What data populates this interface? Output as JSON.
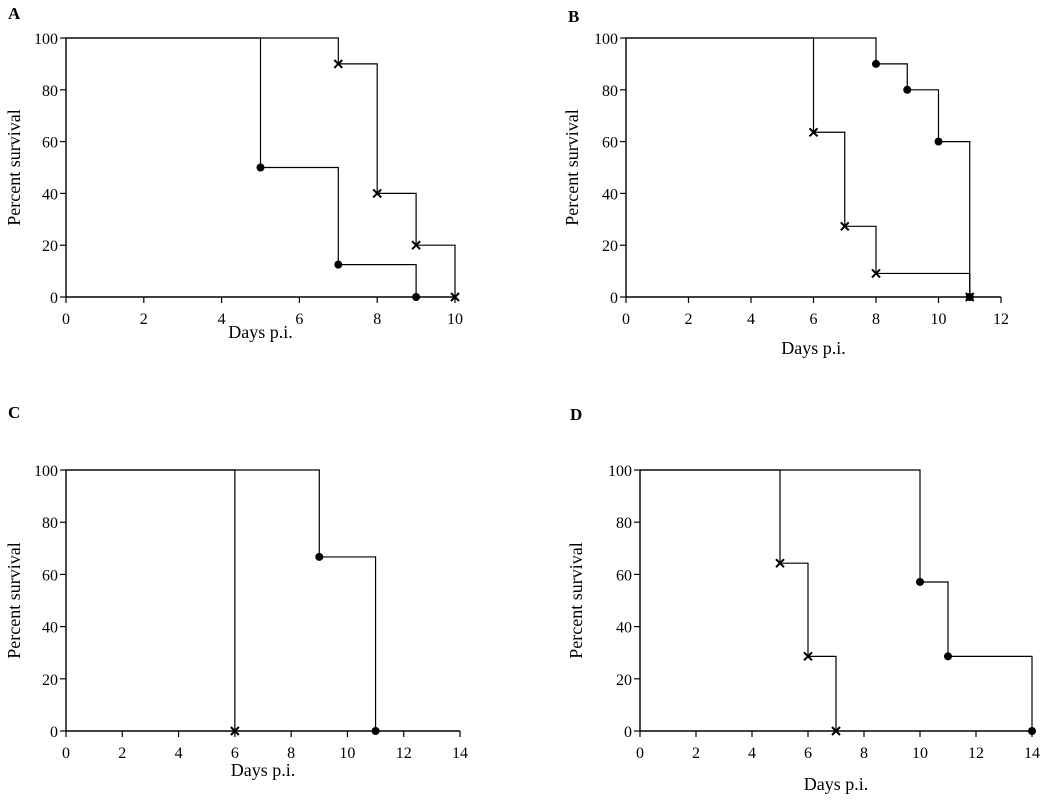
{
  "chart_data": [
    {
      "type": "line",
      "panel": "A",
      "xlabel": "Days p.i.",
      "ylabel": "Percent survival",
      "xlim": [
        0,
        10
      ],
      "ylim": [
        0,
        100
      ],
      "xticks": [
        0,
        2,
        4,
        6,
        8,
        10
      ],
      "yticks": [
        0,
        20,
        40,
        60,
        80,
        100
      ],
      "series": [
        {
          "marker": "dot",
          "steps": [
            [
              0,
              100
            ],
            [
              5,
              50
            ],
            [
              7,
              12.5
            ],
            [
              9,
              0
            ]
          ]
        },
        {
          "marker": "cross",
          "steps": [
            [
              0,
              100
            ],
            [
              7,
              90
            ],
            [
              8,
              40
            ],
            [
              9,
              20
            ],
            [
              10,
              0
            ]
          ]
        }
      ]
    },
    {
      "type": "line",
      "panel": "B",
      "xlabel": "Days p.i.",
      "ylabel": "Percent survival",
      "xlim": [
        0,
        12
      ],
      "ylim": [
        0,
        100
      ],
      "xticks": [
        0,
        2,
        4,
        6,
        8,
        10,
        12
      ],
      "yticks": [
        0,
        20,
        40,
        60,
        80,
        100
      ],
      "series": [
        {
          "marker": "dot",
          "steps": [
            [
              0,
              100
            ],
            [
              8,
              90
            ],
            [
              9,
              80
            ],
            [
              10,
              60
            ],
            [
              11,
              0
            ]
          ]
        },
        {
          "marker": "cross",
          "steps": [
            [
              0,
              100
            ],
            [
              6,
              63.6
            ],
            [
              7,
              27.3
            ],
            [
              8,
              9.1
            ],
            [
              11,
              0
            ]
          ]
        }
      ]
    },
    {
      "type": "line",
      "panel": "C",
      "xlabel": "Days p.i.",
      "ylabel": "Percent survival",
      "xlim": [
        0,
        14
      ],
      "ylim": [
        0,
        100
      ],
      "xticks": [
        0,
        2,
        4,
        6,
        8,
        10,
        12,
        14
      ],
      "yticks": [
        0,
        20,
        40,
        60,
        80,
        100
      ],
      "series": [
        {
          "marker": "dot",
          "steps": [
            [
              0,
              100
            ],
            [
              9,
              66.7
            ],
            [
              11,
              0
            ]
          ]
        },
        {
          "marker": "cross",
          "steps": [
            [
              0,
              100
            ],
            [
              6,
              0
            ]
          ]
        }
      ]
    },
    {
      "type": "line",
      "panel": "D",
      "xlabel": "Days p.i.",
      "ylabel": "Percent survival",
      "xlim": [
        0,
        14
      ],
      "ylim": [
        0,
        100
      ],
      "xticks": [
        0,
        2,
        4,
        6,
        8,
        10,
        12,
        14
      ],
      "yticks": [
        0,
        20,
        40,
        60,
        80,
        100
      ],
      "series": [
        {
          "marker": "dot",
          "steps": [
            [
              0,
              100
            ],
            [
              10,
              57.1
            ],
            [
              11,
              28.6
            ],
            [
              14,
              0
            ]
          ]
        },
        {
          "marker": "cross",
          "steps": [
            [
              0,
              100
            ],
            [
              5,
              64.3
            ],
            [
              6,
              28.6
            ],
            [
              7,
              0
            ]
          ]
        }
      ]
    }
  ]
}
